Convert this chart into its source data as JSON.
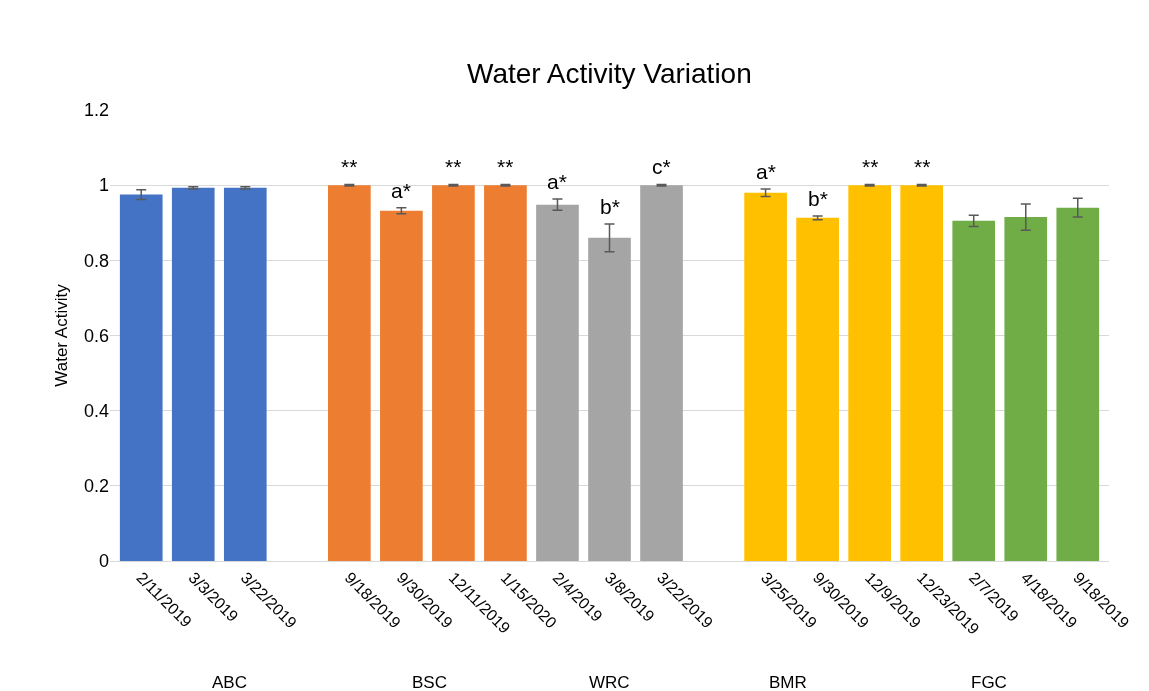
{
  "chart_data": {
    "type": "bar",
    "title": "Water Activity Variation",
    "ylabel": "Water Activity",
    "categories": [
      "2/11/2019",
      "3/3/2019",
      "3/22/2019",
      null,
      "9/18/2019",
      "9/30/2019",
      "12/11/2019",
      "1/15/2020",
      "2/4/2019",
      "3/8/2019",
      "3/22/2019",
      null,
      "3/25/2019",
      "9/30/2019",
      "12/9/2019",
      "12/23/2019",
      "2/7/2019",
      "4/18/2019",
      "9/18/2019"
    ],
    "values": [
      0.975,
      0.993,
      0.993,
      null,
      1.0,
      0.932,
      1.0,
      1.0,
      0.948,
      0.86,
      1.0,
      null,
      0.98,
      0.913,
      1.0,
      1.0,
      0.905,
      0.915,
      0.94
    ],
    "errors": [
      0.013,
      0.003,
      0.003,
      null,
      0.002,
      0.008,
      0.002,
      0.002,
      0.015,
      0.037,
      0.002,
      null,
      0.01,
      0.005,
      0.002,
      0.002,
      0.015,
      0.035,
      0.025
    ],
    "colors": [
      "#4472c4",
      "#4472c4",
      "#4472c4",
      "#ffffff",
      "#ed7d31",
      "#ed7d31",
      "#ed7d31",
      "#ed7d31",
      "#a5a5a5",
      "#a5a5a5",
      "#a5a5a5",
      "#ffffff",
      "#ffc000",
      "#ffc000",
      "#ffc000",
      "#ffc000",
      "#70ad47",
      "#70ad47",
      "#70ad47"
    ],
    "ylim": [
      0,
      1.2
    ],
    "yticks": [
      0,
      0.2,
      0.4,
      0.6,
      0.8,
      1,
      1.2
    ],
    "grid": "y",
    "annotations": [
      "ABC",
      "BSC",
      "WRC",
      "BMR",
      "FGC"
    ],
    "value_labels": [
      null,
      null,
      null,
      null,
      "**",
      "a*",
      "**",
      "**",
      "a*",
      "b*",
      "c*",
      null,
      "a*",
      "b*",
      "**",
      "**",
      null,
      null,
      null
    ]
  }
}
